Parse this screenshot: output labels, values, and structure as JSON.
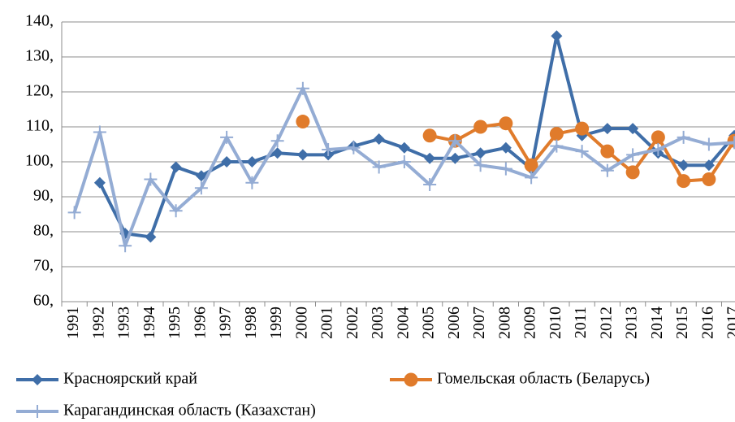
{
  "chart_data": {
    "type": "line",
    "categories": [
      "1991",
      "1992",
      "1993",
      "1994",
      "1995",
      "1996",
      "1997",
      "1998",
      "1999",
      "2000",
      "2001",
      "2002",
      "2003",
      "2004",
      "2005",
      "2006",
      "2007",
      "2008",
      "2009",
      "2010",
      "2011",
      "2012",
      "2013",
      "2014",
      "2015",
      "2016",
      "2017"
    ],
    "series": [
      {
        "name": "Красноярский край",
        "color": "#3f6ea8",
        "marker": "diamond",
        "values": [
          null,
          94,
          79.5,
          78.5,
          98.5,
          96,
          100,
          100,
          102.5,
          102,
          102,
          104.5,
          106.5,
          104,
          101,
          101,
          102.5,
          104,
          98,
          136,
          107.5,
          109.5,
          109.5,
          102.5,
          99,
          99,
          107.5
        ]
      },
      {
        "name": "Гомельская область (Беларусь)",
        "color": "#e07b2b",
        "marker": "circle",
        "values": [
          null,
          null,
          null,
          null,
          null,
          null,
          null,
          null,
          null,
          111.5,
          null,
          null,
          null,
          null,
          107.5,
          106,
          110,
          111,
          99,
          108,
          109.5,
          103,
          97,
          107,
          94.5,
          95,
          106
        ]
      },
      {
        "name": "Карагандинская область (Казахстан)",
        "color": "#94acd4",
        "marker": "plus",
        "values": [
          85.5,
          108.5,
          76,
          95,
          86,
          92.5,
          107,
          94,
          106,
          121,
          103.5,
          104,
          98.5,
          100,
          93.5,
          106,
          99,
          98,
          95.5,
          104.5,
          103,
          97.5,
          102,
          103.5,
          107,
          105,
          105.5
        ]
      }
    ],
    "ylim": [
      60,
      140
    ],
    "yticks": [
      {
        "value": 60,
        "label": "60,"
      },
      {
        "value": 70,
        "label": "70,"
      },
      {
        "value": 80,
        "label": "80,"
      },
      {
        "value": 90,
        "label": "90,"
      },
      {
        "value": 100,
        "label": "100,"
      },
      {
        "value": 110,
        "label": "110,"
      },
      {
        "value": 120,
        "label": "120,"
      },
      {
        "value": 130,
        "label": "130,"
      },
      {
        "value": 140,
        "label": "140,"
      }
    ],
    "grid": true
  }
}
